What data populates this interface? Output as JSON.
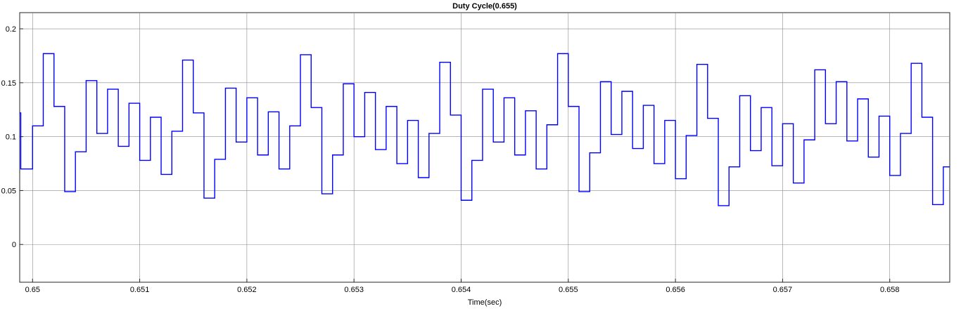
{
  "chart_data": {
    "type": "line",
    "title": "Duty Cycle(0.655)",
    "xlabel": "Time(sec)",
    "ylabel": "",
    "xlim": [
      0.64988,
      0.65856
    ],
    "ylim": [
      -0.035,
      0.215
    ],
    "xticks": [
      0.65,
      0.651,
      0.652,
      0.653,
      0.654,
      0.655,
      0.656,
      0.657,
      0.658
    ],
    "xtick_labels": [
      "0.65",
      "0.651",
      "0.652",
      "0.653",
      "0.654",
      "0.655",
      "0.656",
      "0.657",
      "0.658"
    ],
    "yticks": [
      0,
      0.05,
      0.1,
      0.15,
      0.2
    ],
    "ytick_labels": [
      "0",
      "0.05",
      "0.1",
      "0.15",
      "0.2"
    ],
    "grid": true,
    "line_color": "#0000ff",
    "step": true,
    "series": [
      {
        "x": [
          0.64988,
          0.64989,
          0.65,
          0.6501,
          0.6502,
          0.6503,
          0.6504,
          0.6505,
          0.6506,
          0.6507,
          0.6508,
          0.6509,
          0.651,
          0.6511,
          0.6512,
          0.6513,
          0.6514,
          0.6515,
          0.6516,
          0.6517,
          0.6518,
          0.6519,
          0.652,
          0.6521,
          0.6522,
          0.6523,
          0.6524,
          0.6525,
          0.6526,
          0.6527,
          0.6528,
          0.6529,
          0.653,
          0.6531,
          0.6532,
          0.6533,
          0.6534,
          0.6535,
          0.6536,
          0.6537,
          0.6538,
          0.6539,
          0.654,
          0.6541,
          0.6542,
          0.6543,
          0.6544,
          0.6545,
          0.6546,
          0.6547,
          0.6548,
          0.6549,
          0.655,
          0.6551,
          0.6552,
          0.6553,
          0.6554,
          0.6555,
          0.6556,
          0.6557,
          0.6558,
          0.6559,
          0.656,
          0.6561,
          0.6562,
          0.6563,
          0.6564,
          0.6565,
          0.6566,
          0.6567,
          0.6568,
          0.6569,
          0.657,
          0.6571,
          0.6572,
          0.6573,
          0.6574,
          0.6575,
          0.6576,
          0.6577,
          0.6578,
          0.6579,
          0.658,
          0.6581,
          0.6582,
          0.6583,
          0.6584,
          0.6585
        ],
        "y": [
          0.122,
          0.07,
          0.11,
          0.177,
          0.128,
          0.049,
          0.086,
          0.152,
          0.103,
          0.144,
          0.091,
          0.131,
          0.078,
          0.118,
          0.065,
          0.105,
          0.171,
          0.122,
          0.043,
          0.079,
          0.145,
          0.095,
          0.136,
          0.083,
          0.123,
          0.07,
          0.11,
          0.176,
          0.127,
          0.047,
          0.083,
          0.149,
          0.1,
          0.141,
          0.088,
          0.128,
          0.075,
          0.115,
          0.062,
          0.103,
          0.169,
          0.12,
          0.041,
          0.078,
          0.144,
          0.095,
          0.136,
          0.083,
          0.124,
          0.07,
          0.111,
          0.177,
          0.128,
          0.049,
          0.085,
          0.151,
          0.102,
          0.142,
          0.089,
          0.129,
          0.075,
          0.115,
          0.061,
          0.101,
          0.167,
          0.117,
          0.036,
          0.072,
          0.138,
          0.087,
          0.127,
          0.073,
          0.112,
          0.057,
          0.097,
          0.162,
          0.112,
          0.151,
          0.096,
          0.135,
          0.081,
          0.119,
          0.064,
          0.103,
          0.168,
          0.118,
          0.037,
          0.072
        ]
      }
    ]
  }
}
